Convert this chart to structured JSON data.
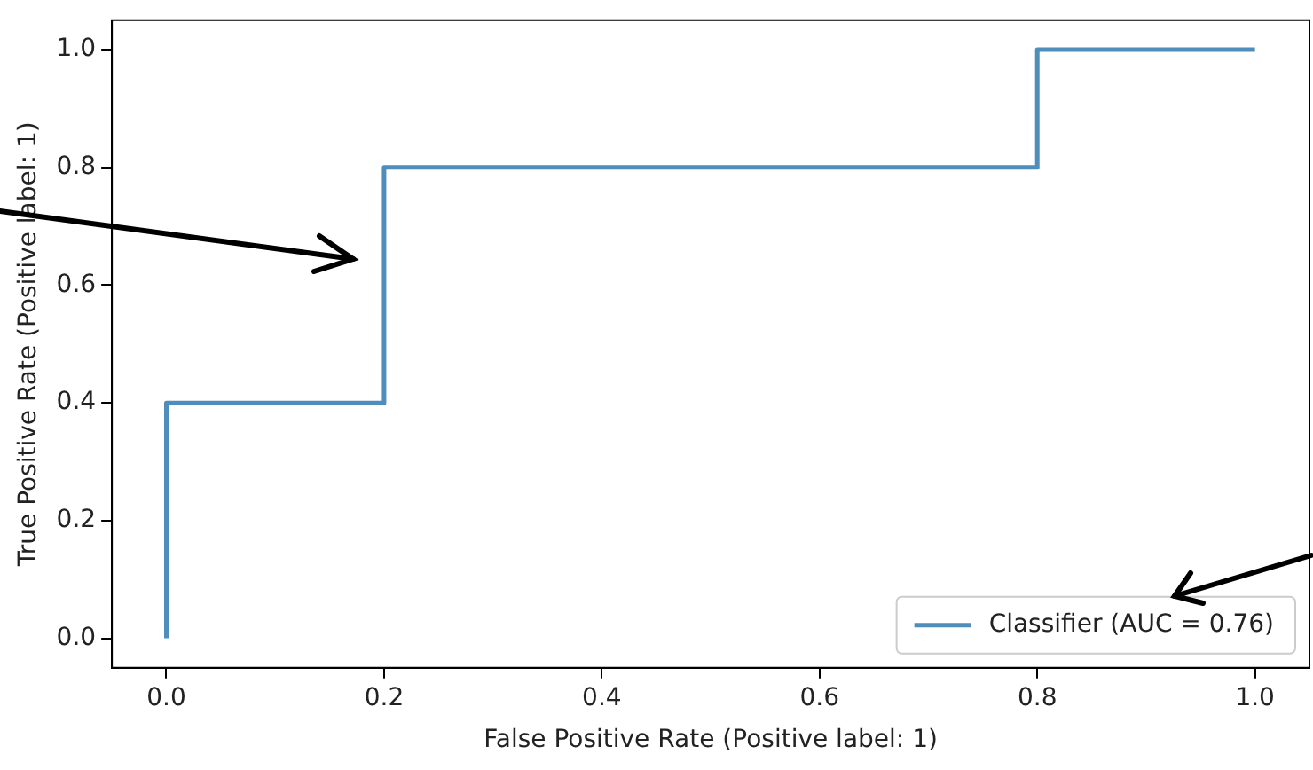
{
  "chart_data": {
    "type": "line",
    "xlabel": "False Positive Rate (Positive label: 1)",
    "ylabel": "True Positive Rate (Positive label: 1)",
    "series": [
      {
        "name": "Classifier (AUC = 0.76)",
        "color": "#4f8dbb",
        "x": [
          0,
          0,
          0.2,
          0.2,
          0.8,
          0.8,
          1
        ],
        "values": [
          0,
          0.4,
          0.4,
          0.8,
          0.8,
          1,
          1
        ]
      }
    ],
    "xlim": [
      -0.05,
      1.05
    ],
    "ylim": [
      -0.05,
      1.05
    ],
    "xticks": [
      {
        "value": 0,
        "label": "0.0"
      },
      {
        "value": 0.2,
        "label": "0.2"
      },
      {
        "value": 0.4,
        "label": "0.4"
      },
      {
        "value": 0.6,
        "label": "0.6"
      },
      {
        "value": 0.8,
        "label": "0.8"
      },
      {
        "value": 1,
        "label": "1.0"
      }
    ],
    "yticks": [
      {
        "value": 0,
        "label": "0.0"
      },
      {
        "value": 0.2,
        "label": "0.2"
      },
      {
        "value": 0.4,
        "label": "0.4"
      },
      {
        "value": 0.6,
        "label": "0.6"
      },
      {
        "value": 0.8,
        "label": "0.8"
      },
      {
        "value": 1,
        "label": "1.0"
      }
    ],
    "grid": false,
    "legend": "bottom right",
    "marker": "none",
    "line_style": "solid"
  }
}
